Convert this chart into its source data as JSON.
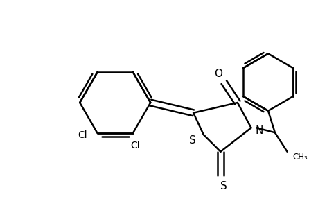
{
  "bg_color": "#ffffff",
  "line_color": "#000000",
  "line_width": 1.8,
  "figsize": [
    4.6,
    3.0
  ],
  "dpi": 100,
  "atoms": {
    "Cl1_label": "Cl",
    "Cl2_label": "Cl",
    "S_ring": "S",
    "N_ring": "N",
    "O_label": "O",
    "S_exo": "S"
  }
}
